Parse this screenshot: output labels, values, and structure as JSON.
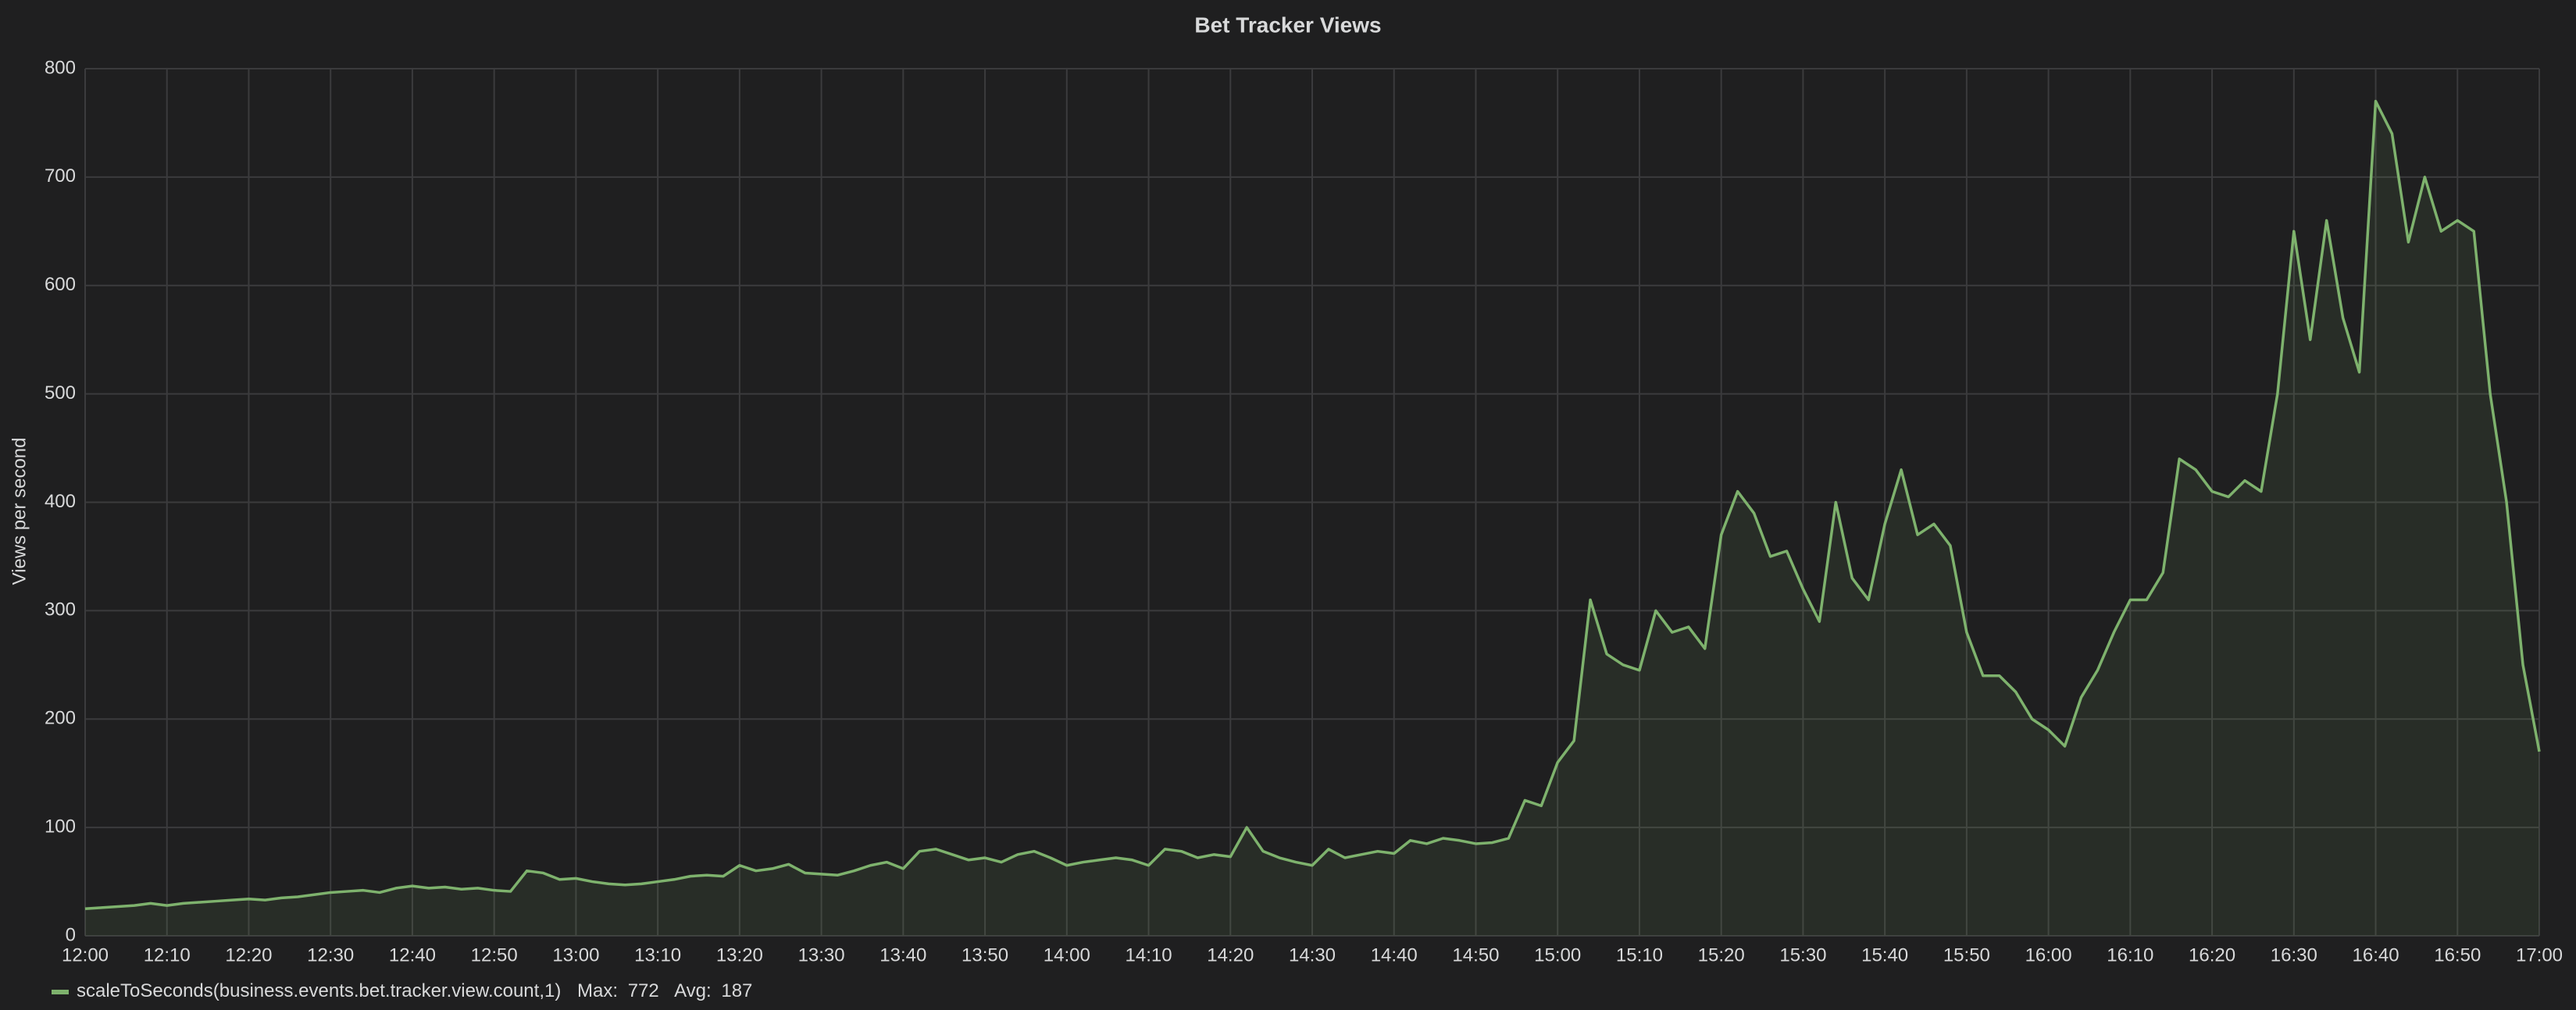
{
  "chart_data": {
    "type": "line",
    "title": "Bet Tracker Views",
    "y_label": "Views per second",
    "x": [
      "12:00",
      "12:02",
      "12:04",
      "12:06",
      "12:08",
      "12:10",
      "12:12",
      "12:14",
      "12:16",
      "12:18",
      "12:20",
      "12:22",
      "12:24",
      "12:26",
      "12:28",
      "12:30",
      "12:32",
      "12:34",
      "12:36",
      "12:38",
      "12:40",
      "12:42",
      "12:44",
      "12:46",
      "12:48",
      "12:50",
      "12:52",
      "12:54",
      "12:56",
      "12:58",
      "13:00",
      "13:02",
      "13:04",
      "13:06",
      "13:08",
      "13:10",
      "13:12",
      "13:14",
      "13:16",
      "13:18",
      "13:20",
      "13:22",
      "13:24",
      "13:26",
      "13:28",
      "13:30",
      "13:32",
      "13:34",
      "13:36",
      "13:38",
      "13:40",
      "13:42",
      "13:44",
      "13:46",
      "13:48",
      "13:50",
      "13:52",
      "13:54",
      "13:56",
      "13:58",
      "14:00",
      "14:02",
      "14:04",
      "14:06",
      "14:08",
      "14:10",
      "14:12",
      "14:14",
      "14:16",
      "14:18",
      "14:20",
      "14:22",
      "14:24",
      "14:26",
      "14:28",
      "14:30",
      "14:32",
      "14:34",
      "14:36",
      "14:38",
      "14:40",
      "14:42",
      "14:44",
      "14:46",
      "14:48",
      "14:50",
      "14:52",
      "14:54",
      "14:56",
      "14:58",
      "15:00",
      "15:02",
      "15:04",
      "15:06",
      "15:08",
      "15:10",
      "15:12",
      "15:14",
      "15:16",
      "15:18",
      "15:20",
      "15:22",
      "15:24",
      "15:26",
      "15:28",
      "15:30",
      "15:32",
      "15:34",
      "15:36",
      "15:38",
      "15:40",
      "15:42",
      "15:44",
      "15:46",
      "15:48",
      "15:50",
      "15:52",
      "15:54",
      "15:56",
      "15:58",
      "16:00",
      "16:02",
      "16:04",
      "16:06",
      "16:08",
      "16:10",
      "16:12",
      "16:14",
      "16:16",
      "16:18",
      "16:20",
      "16:22",
      "16:24",
      "16:26",
      "16:28",
      "16:30",
      "16:32",
      "16:34",
      "16:36",
      "16:38",
      "16:40",
      "16:42",
      "16:44",
      "16:46",
      "16:48",
      "16:50",
      "16:52",
      "16:54",
      "16:56",
      "16:58",
      "17:00"
    ],
    "series": [
      {
        "name": "scaleToSeconds(business.events.bet.tracker.view.count,1)",
        "color": "#7eb26d",
        "values": [
          25,
          26,
          27,
          28,
          30,
          28,
          30,
          31,
          32,
          33,
          34,
          33,
          35,
          36,
          38,
          40,
          41,
          42,
          40,
          44,
          46,
          44,
          45,
          43,
          44,
          42,
          41,
          60,
          58,
          52,
          53,
          50,
          48,
          47,
          48,
          50,
          52,
          55,
          56,
          55,
          65,
          60,
          62,
          66,
          58,
          57,
          56,
          60,
          65,
          68,
          62,
          78,
          80,
          75,
          70,
          72,
          68,
          75,
          78,
          72,
          65,
          68,
          70,
          72,
          70,
          65,
          80,
          78,
          72,
          75,
          73,
          100,
          78,
          72,
          68,
          65,
          80,
          72,
          75,
          78,
          76,
          88,
          85,
          90,
          88,
          85,
          86,
          90,
          125,
          120,
          160,
          180,
          310,
          260,
          250,
          245,
          300,
          280,
          285,
          265,
          370,
          410,
          390,
          350,
          355,
          320,
          290,
          400,
          330,
          310,
          380,
          430,
          370,
          380,
          360,
          280,
          240,
          240,
          225,
          200,
          190,
          175,
          220,
          245,
          280,
          310,
          310,
          335,
          440,
          430,
          410,
          405,
          420,
          410,
          500,
          650,
          550,
          660,
          570,
          520,
          770,
          740,
          640,
          700,
          650,
          660,
          650,
          500,
          400,
          250,
          170
        ]
      }
    ],
    "legend_stats": [
      {
        "label": "Max:",
        "value": 772
      },
      {
        "label": "Avg:",
        "value": 187
      }
    ],
    "xlim": [
      "12:00",
      "17:00"
    ],
    "xticks": [
      "12:00",
      "12:10",
      "12:20",
      "12:30",
      "12:40",
      "12:50",
      "13:00",
      "13:10",
      "13:20",
      "13:30",
      "13:40",
      "13:50",
      "14:00",
      "14:10",
      "14:20",
      "14:30",
      "14:40",
      "14:50",
      "15:00",
      "15:10",
      "15:20",
      "15:30",
      "15:40",
      "15:50",
      "16:00",
      "16:10",
      "16:20",
      "16:30",
      "16:40",
      "16:50",
      "17:00"
    ],
    "ylim": [
      0,
      800
    ],
    "yticks": [
      0,
      100,
      200,
      300,
      400,
      500,
      600,
      700,
      800
    ],
    "grid": true,
    "fill": true
  }
}
